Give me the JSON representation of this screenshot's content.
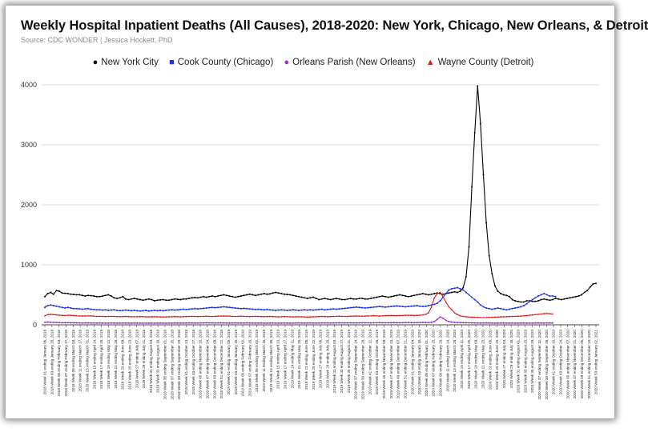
{
  "title": "Weekly Hospital Inpatient Deaths (All Causes), 2018-2020: New York, Chicago, New Orleans, & Detroit",
  "subtitle": "Source: CDC WONDER | Jessica Hockett, PhD",
  "colors": {
    "new_york": "#000000",
    "chicago": "#1f32e6",
    "new_orleans": "#9b2fd0",
    "detroit": "#e01b1b",
    "grid": "#dddddd",
    "axis": "#444444"
  },
  "chart_data": {
    "type": "line",
    "title": "Weekly Hospital Inpatient Deaths (All Causes), 2018-2020: New York, Chicago, New Orleans, & Detroit",
    "xlabel": "",
    "ylabel": "",
    "ylim": [
      0,
      4000
    ],
    "yticks": [
      0,
      1000,
      2000,
      3000,
      4000
    ],
    "grid": true,
    "legend_position": "top-center",
    "x_tick_labels": [
      "2018 Week 01 ending January 06, 2018",
      "2018 Week 03 ending January 20, 2018",
      "2018 Week 05 ending February 03, 2018",
      "2018 Week 07 ending February 17, 2018",
      "2018 Week 09 ending March 03, 2018",
      "2018 Week 11 ending March 17, 2018",
      "2018 Week 13 ending March 31, 2018",
      "2018 Week 15 ending April 14, 2018",
      "2018 Week 17 ending April 28, 2018",
      "2018 Week 19 ending May 12, 2018",
      "2018 Week 21 ending May 26, 2018",
      "2018 Week 23 ending June 09, 2018",
      "2018 Week 25 ending June 23, 2018",
      "2018 Week 27 ending July 07, 2018",
      "2018 Week 29 ending July 21, 2018",
      "2018 Week 31 ending August 04, 2018",
      "2018 Week 33 ending August 18, 2018",
      "2018 Week 35 ending September 01, 2018",
      "2018 Week 37 ending September 15, 2018",
      "2018 Week 39 ending September 29, 2018",
      "2018 Week 41 ending October 13, 2018",
      "2018 Week 43 ending October 27, 2018",
      "2018 Week 45 ending November 10, 2018",
      "2018 Week 47 ending November 24, 2018",
      "2018 Week 49 ending December 08, 2018",
      "2018 Week 51 ending December 22, 2018",
      "2019 Week 01 ending January 05, 2019",
      "2019 Week 03 ending January 19, 2019",
      "2019 Week 05 ending February 02, 2019",
      "2019 Week 07 ending February 16, 2019",
      "2019 Week 09 ending March 02, 2019",
      "2019 Week 11 ending March 16, 2019",
      "2019 Week 13 ending March 30, 2019",
      "2019 Week 15 ending April 13, 2019",
      "2019 Week 17 ending April 27, 2019",
      "2019 Week 19 ending May 11, 2019",
      "2019 Week 21 ending May 25, 2019",
      "2019 Week 23 ending June 08, 2019",
      "2019 Week 25 ending June 22, 2019",
      "2019 Week 27 ending July 06, 2019",
      "2019 Week 29 ending July 20, 2019",
      "2019 Week 31 ending August 03, 2019",
      "2019 Week 33 ending August 17, 2019",
      "2019 Week 35 ending August 31, 2019",
      "2019 Week 37 ending September 14, 2019",
      "2019 Week 39 ending September 28, 2019",
      "2019 Week 41 ending October 12, 2019",
      "2019 Week 43 ending October 26, 2019",
      "2019 Week 45 ending November 09, 2019",
      "2019 Week 47 ending November 23, 2019",
      "2019 Week 49 ending December 07, 2019",
      "2019 Week 51 ending December 21, 2019",
      "2020 Week 01 ending January 04, 2020",
      "2020 Week 03 ending January 18, 2020",
      "2020 Week 05 ending February 01, 2020",
      "2020 Week 07 ending February 15, 2020",
      "2020 Week 09 ending February 29, 2020",
      "2020 Week 11 ending March 14, 2020",
      "2020 Week 13 ending March 28, 2020",
      "2020 Week 15 ending April 11, 2020",
      "2020 Week 17 ending April 25, 2020",
      "2020 Week 19 ending May 09, 2020",
      "2020 Week 21 ending May 23, 2020",
      "2020 Week 23 ending June 06, 2020",
      "2020 Week 25 ending June 20, 2020",
      "2020 Week 27 ending July 04, 2020",
      "2020 Week 29 ending July 18, 2020",
      "2020 Week 31 ending August 01, 2020",
      "2020 Week 33 ending August 15, 2020",
      "2020 Week 35 ending August 29, 2020",
      "2020 Week 37 ending September 12, 2020",
      "2020 Week 39 ending September 26, 2020",
      "2020 Week 41 ending October 10, 2020",
      "2020 Week 43 ending October 24, 2020",
      "2020 Week 45 ending November 07, 2020",
      "2020 Week 47 ending November 21, 2020",
      "2020 Week 49 ending December 05, 2020",
      "2020 Week 51 ending December 19, 2020",
      "2020 Week 53 ending January 02, 2021"
    ],
    "series": [
      {
        "name": "New York City",
        "color": "#000000",
        "marker": "circle",
        "values": [
          470,
          520,
          540,
          510,
          570,
          560,
          530,
          525,
          520,
          510,
          505,
          500,
          500,
          490,
          480,
          490,
          485,
          480,
          470,
          470,
          480,
          490,
          500,
          480,
          450,
          440,
          450,
          470,
          430,
          420,
          430,
          440,
          430,
          420,
          410,
          420,
          430,
          420,
          400,
          410,
          415,
          420,
          410,
          410,
          420,
          430,
          425,
          420,
          430,
          430,
          440,
          450,
          455,
          450,
          460,
          470,
          460,
          470,
          480,
          470,
          480,
          490,
          500,
          490,
          480,
          470,
          460,
          470,
          480,
          490,
          500,
          510,
          500,
          490,
          500,
          510,
          520,
          510,
          515,
          530,
          540,
          530,
          520,
          510,
          505,
          500,
          490,
          480,
          470,
          460,
          450,
          440,
          450,
          460,
          440,
          420,
          430,
          440,
          430,
          420,
          430,
          440,
          430,
          420,
          420,
          430,
          440,
          430,
          430,
          440,
          440,
          430,
          430,
          440,
          450,
          460,
          470,
          480,
          470,
          460,
          470,
          480,
          490,
          500,
          490,
          480,
          470,
          480,
          490,
          500,
          510,
          520,
          510,
          500,
          510,
          520,
          530,
          520,
          510,
          520,
          530,
          540,
          550,
          540,
          560,
          620,
          800,
          1300,
          2300,
          3200,
          3980,
          3350,
          2500,
          1700,
          1150,
          850,
          650,
          560,
          520,
          500,
          490,
          470,
          420,
          400,
          390,
          380,
          380,
          400,
          400,
          390,
          390,
          400,
          420,
          430,
          420,
          410,
          420,
          440,
          430,
          420,
          430,
          440,
          450,
          460,
          470,
          480,
          500,
          540,
          570,
          630,
          680,
          690
        ]
      },
      {
        "name": "Cook County (Chicago)",
        "color": "#1f32e6",
        "marker": "square",
        "values": [
          290,
          320,
          330,
          320,
          310,
          300,
          290,
          280,
          290,
          280,
          270,
          270,
          265,
          260,
          265,
          270,
          260,
          255,
          250,
          250,
          245,
          250,
          240,
          245,
          250,
          240,
          235,
          240,
          245,
          240,
          235,
          240,
          235,
          230,
          235,
          240,
          230,
          235,
          240,
          235,
          240,
          235,
          240,
          245,
          250,
          245,
          250,
          255,
          260,
          255,
          260,
          265,
          270,
          265,
          270,
          275,
          280,
          285,
          290,
          285,
          290,
          295,
          300,
          295,
          290,
          285,
          280,
          275,
          270,
          275,
          270,
          265,
          260,
          255,
          260,
          255,
          250,
          255,
          250,
          245,
          240,
          245,
          250,
          245,
          240,
          245,
          250,
          245,
          240,
          245,
          250,
          245,
          250,
          245,
          250,
          255,
          260,
          250,
          255,
          260,
          265,
          260,
          265,
          270,
          275,
          280,
          285,
          290,
          295,
          290,
          285,
          280,
          285,
          290,
          295,
          300,
          305,
          300,
          295,
          300,
          305,
          310,
          315,
          310,
          305,
          300,
          305,
          310,
          315,
          320,
          310,
          305,
          310,
          320,
          330,
          340,
          360,
          400,
          460,
          520,
          580,
          600,
          610,
          620,
          600,
          580,
          540,
          500,
          460,
          420,
          380,
          330,
          300,
          280,
          270,
          260,
          270,
          280,
          270,
          260,
          250,
          260,
          270,
          280,
          290,
          300,
          320,
          350,
          390,
          420,
          450,
          480,
          500,
          520,
          500,
          480,
          480,
          470
        ]
      },
      {
        "name": "Orleans Parish (New Orleans)",
        "color": "#9b2fd0",
        "marker": "circle",
        "values": [
          40,
          45,
          42,
          40,
          38,
          36,
          34,
          35,
          36,
          34,
          33,
          32,
          31,
          30,
          31,
          32,
          30,
          30,
          29,
          30,
          29,
          28,
          29,
          30,
          29,
          28,
          29,
          30,
          29,
          28,
          29,
          30,
          29,
          28,
          27,
          28,
          29,
          28,
          27,
          28,
          29,
          28,
          27,
          28,
          29,
          30,
          29,
          28,
          29,
          30,
          31,
          30,
          29,
          30,
          31,
          32,
          33,
          32,
          31,
          30,
          31,
          32,
          31,
          30,
          29,
          30,
          31,
          30,
          29,
          30,
          31,
          30,
          29,
          28,
          29,
          30,
          29,
          28,
          29,
          30,
          29,
          28,
          29,
          30,
          29,
          28,
          29,
          30,
          31,
          30,
          29,
          30,
          31,
          30,
          29,
          30,
          31,
          32,
          31,
          30,
          31,
          32,
          33,
          32,
          31,
          32,
          33,
          32,
          31,
          32,
          33,
          34,
          33,
          32,
          33,
          34,
          35,
          34,
          33,
          34,
          35,
          36,
          35,
          34,
          35,
          36,
          37,
          36,
          35,
          36,
          37,
          38,
          37,
          36,
          40,
          55,
          90,
          130,
          110,
          75,
          55,
          45,
          40,
          38,
          36,
          35,
          34,
          33,
          32,
          31,
          30,
          29,
          30,
          31,
          30,
          29,
          28,
          29,
          30,
          29,
          28,
          29,
          30,
          29,
          28,
          29,
          30,
          29,
          28,
          29,
          30,
          31,
          30,
          29,
          30,
          31,
          30
        ]
      },
      {
        "name": "Wayne County (Detroit)",
        "color": "#e01b1b",
        "marker": "triangle",
        "values": [
          150,
          170,
          175,
          170,
          165,
          160,
          158,
          155,
          160,
          158,
          155,
          150,
          148,
          145,
          148,
          150,
          148,
          145,
          140,
          142,
          140,
          138,
          140,
          142,
          140,
          138,
          136,
          138,
          140,
          138,
          136,
          135,
          136,
          138,
          136,
          134,
          132,
          134,
          136,
          134,
          132,
          130,
          132,
          134,
          136,
          138,
          136,
          134,
          136,
          138,
          140,
          142,
          140,
          138,
          140,
          142,
          144,
          142,
          140,
          142,
          144,
          146,
          148,
          146,
          144,
          142,
          140,
          142,
          144,
          142,
          140,
          138,
          140,
          142,
          140,
          138,
          136,
          138,
          140,
          138,
          136,
          134,
          136,
          138,
          136,
          134,
          132,
          134,
          136,
          134,
          132,
          130,
          132,
          134,
          136,
          138,
          140,
          138,
          136,
          138,
          140,
          142,
          144,
          142,
          140,
          142,
          144,
          146,
          148,
          146,
          144,
          146,
          148,
          150,
          152,
          150,
          148,
          150,
          152,
          154,
          156,
          154,
          152,
          154,
          156,
          158,
          160,
          158,
          156,
          158,
          160,
          165,
          175,
          200,
          300,
          450,
          520,
          540,
          470,
          380,
          300,
          250,
          200,
          170,
          150,
          140,
          135,
          130,
          128,
          126,
          124,
          122,
          120,
          122,
          124,
          126,
          128,
          130,
          132,
          134,
          136,
          138,
          140,
          142,
          144,
          146,
          150,
          155,
          160,
          165,
          170,
          175,
          180,
          185,
          190,
          185,
          180
        ]
      }
    ]
  }
}
